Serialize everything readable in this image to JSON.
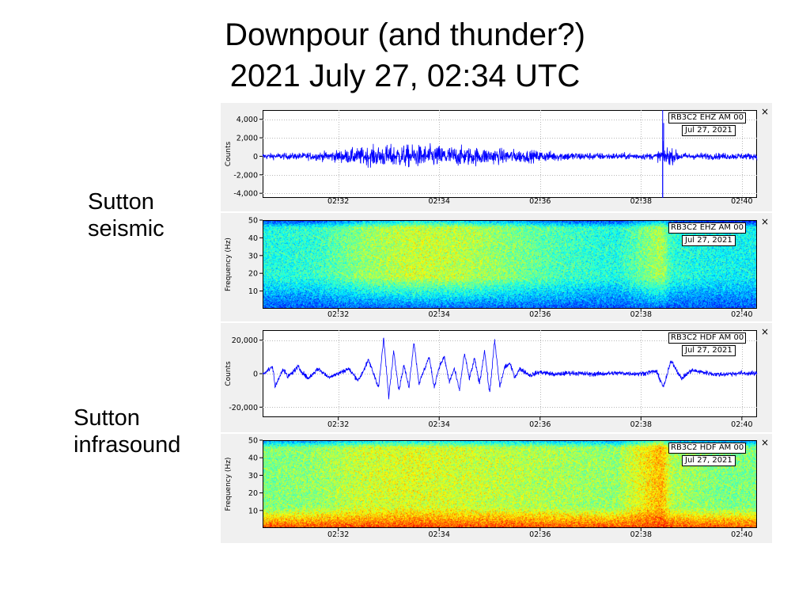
{
  "title": {
    "line1": "Downpour (and thunder?)",
    "line2": "2021 July 27, 02:34 UTC"
  },
  "labels": {
    "seismic": [
      "Sutton",
      "seismic"
    ],
    "infrasound": [
      "Sutton",
      "infrasound"
    ]
  },
  "close_symbol": "×",
  "chart_data": [
    {
      "type": "line",
      "id": "seismic-waveform",
      "station_label": "RB3C2 EHZ AM 00",
      "date_label": "Jul 27, 2021",
      "ylabel": "Counts",
      "ylim": [
        -4500,
        5000
      ],
      "yticks": [
        4000,
        2000,
        0,
        -2000,
        -4000
      ],
      "ytick_labels": [
        "4,000",
        "2,000",
        "0",
        "-2,000",
        "-4,000"
      ],
      "x_range_min": [
        30.5,
        40.3
      ],
      "xticks_min": [
        32,
        34,
        36,
        38,
        40
      ],
      "xtick_labels": [
        "02:32",
        "02:34",
        "02:36",
        "02:38",
        "02:40"
      ],
      "grid": true,
      "color": "#0000ff",
      "envelope": {
        "x_min": [
          30.5,
          31.0,
          31.5,
          32.0,
          32.5,
          33.0,
          33.5,
          34.0,
          34.5,
          35.0,
          35.5,
          36.0,
          36.5,
          37.0,
          37.5,
          38.0,
          38.3,
          38.45,
          38.6,
          38.8,
          39.0,
          39.5,
          40.0,
          40.3
        ],
        "amplitude": [
          350,
          380,
          450,
          700,
          1050,
          1300,
          1300,
          1250,
          1100,
          950,
          800,
          650,
          520,
          420,
          380,
          380,
          380,
          1300,
          900,
          450,
          380,
          380,
          380,
          380
        ]
      },
      "events": [
        {
          "x_min": 38.45,
          "value": 3600,
          "note_peak": true
        },
        {
          "x_min": 38.43,
          "value": -4500,
          "note_peak": true
        }
      ],
      "marker_x_min": 38.43
    },
    {
      "type": "heatmap",
      "id": "seismic-spectrogram",
      "station_label": "RB3C2 EHZ AM 00",
      "date_label": "Jul 27, 2021",
      "ylabel": "Frequency (Hz)",
      "ylim": [
        0,
        50
      ],
      "yticks": [
        50,
        40,
        30,
        20,
        10
      ],
      "ytick_labels": [
        "50",
        "40",
        "30",
        "20",
        "10"
      ],
      "x_range_min": [
        30.5,
        40.3
      ],
      "xticks_min": [
        32,
        34,
        36,
        38,
        40
      ],
      "xtick_labels": [
        "02:32",
        "02:34",
        "02:36",
        "02:38",
        "02:40"
      ],
      "colormap": [
        "#00008f",
        "#0000ff",
        "#0080ff",
        "#00ffff",
        "#80ff80",
        "#ffff00",
        "#ff8000",
        "#ff0000",
        "#800000"
      ],
      "intensity_profile": {
        "x_min": [
          30.5,
          31.5,
          32.5,
          33.5,
          34.5,
          35.5,
          36.5,
          37.5,
          38.4,
          38.6,
          39.5,
          40.3
        ],
        "level": [
          0.4,
          0.42,
          0.52,
          0.58,
          0.56,
          0.5,
          0.44,
          0.4,
          0.55,
          0.42,
          0.38,
          0.38
        ]
      },
      "low_freq_band_hz": [
        0,
        18
      ],
      "low_freq_level": 0.18
    },
    {
      "type": "line",
      "id": "infrasound-waveform",
      "station_label": "RB3C2 HDF AM 00",
      "date_label": "Jul 27, 2021",
      "ylabel": "Counts",
      "ylim": [
        -26000,
        26000
      ],
      "yticks": [
        20000,
        0,
        -20000
      ],
      "ytick_labels": [
        "20,000",
        "0",
        "-20,000"
      ],
      "x_range_min": [
        30.5,
        40.3
      ],
      "xticks_min": [
        32,
        34,
        36,
        38,
        40
      ],
      "xtick_labels": [
        "02:32",
        "02:34",
        "02:36",
        "02:38",
        "02:40"
      ],
      "grid": true,
      "color": "#0000ff",
      "x_min": [
        30.5,
        30.7,
        30.75,
        30.9,
        31.0,
        31.2,
        31.4,
        31.6,
        31.8,
        32.0,
        32.2,
        32.4,
        32.6,
        32.8,
        32.9,
        33.0,
        33.1,
        33.2,
        33.3,
        33.4,
        33.5,
        33.6,
        33.7,
        33.8,
        33.9,
        34.0,
        34.1,
        34.2,
        34.3,
        34.4,
        34.5,
        34.6,
        34.7,
        34.8,
        34.9,
        35.0,
        35.1,
        35.2,
        35.3,
        35.4,
        35.5,
        35.6,
        35.8,
        36.0,
        36.3,
        36.6,
        37.0,
        37.5,
        38.0,
        38.3,
        38.45,
        38.6,
        38.8,
        39.0,
        39.5,
        40.0,
        40.3
      ],
      "y": [
        0,
        4000,
        -8000,
        3000,
        -2000,
        4000,
        -3000,
        3000,
        -2000,
        0,
        3000,
        -4000,
        8000,
        -8000,
        21000,
        -14000,
        14000,
        -10000,
        5000,
        -8000,
        19000,
        -6000,
        2000,
        10000,
        -8000,
        4000,
        10000,
        -5000,
        3000,
        -10000,
        12000,
        -3000,
        9000,
        -6000,
        14000,
        -12000,
        20000,
        -8000,
        4000,
        6000,
        -2000,
        3000,
        -1000,
        1000,
        -500,
        500,
        -300,
        300,
        0,
        1500,
        -8000,
        8000,
        -3000,
        2000,
        -500,
        300,
        0
      ],
      "noise_amplitude": 1400
    },
    {
      "type": "heatmap",
      "id": "infrasound-spectrogram",
      "station_label": "RB3C2 HDF AM 00",
      "date_label": "Jul 27, 2021",
      "ylabel": "Frequency (Hz)",
      "ylim": [
        0,
        50
      ],
      "yticks": [
        50,
        40,
        30,
        20,
        10
      ],
      "ytick_labels": [
        "50",
        "40",
        "30",
        "20",
        "10"
      ],
      "x_range_min": [
        30.5,
        40.3
      ],
      "xticks_min": [
        32,
        34,
        36,
        38,
        40
      ],
      "xtick_labels": [
        "02:32",
        "02:34",
        "02:36",
        "02:38",
        "02:40"
      ],
      "colormap": [
        "#00008f",
        "#0000ff",
        "#0080ff",
        "#00ffff",
        "#80ff80",
        "#ffff00",
        "#ff8000",
        "#ff0000",
        "#800000"
      ],
      "intensity_profile": {
        "x_min": [
          30.5,
          31.5,
          32.5,
          33.5,
          34.5,
          35.5,
          36.5,
          37.5,
          38.4,
          38.6,
          39.5,
          40.3
        ],
        "level": [
          0.5,
          0.52,
          0.58,
          0.6,
          0.58,
          0.56,
          0.54,
          0.52,
          0.7,
          0.55,
          0.5,
          0.5
        ]
      },
      "low_freq_band_hz": [
        0,
        12
      ],
      "low_freq_level": 0.85
    }
  ]
}
